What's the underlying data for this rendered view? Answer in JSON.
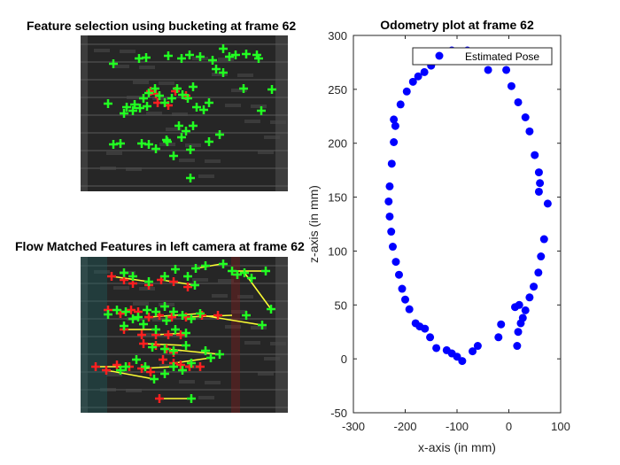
{
  "panels": {
    "top_left_title": "Feature selection using bucketing at frame 62",
    "bottom_left_title": "Flow Matched Features in left camera at frame 62"
  },
  "chart_data": {
    "type": "scatter",
    "title": "Odometry plot at frame 62",
    "xlabel": "x-axis (in mm)",
    "ylabel": "z-axis (in mm)",
    "xlim": [
      -300,
      100
    ],
    "ylim": [
      -50,
      300
    ],
    "xticks": [
      "-300",
      "-200",
      "-100",
      "0",
      "100"
    ],
    "yticks": [
      "-50",
      "0",
      "50",
      "100",
      "150",
      "200",
      "250",
      "300"
    ],
    "grid": false,
    "legend": {
      "position": "top-right",
      "entries": [
        "Estimated Pose"
      ]
    },
    "series": [
      {
        "name": "Estimated Pose",
        "color": "#0000ff",
        "points": [
          [
            -90,
            -2
          ],
          [
            -100,
            2
          ],
          [
            -110,
            5
          ],
          [
            -120,
            8
          ],
          [
            -140,
            10
          ],
          [
            -152,
            20
          ],
          [
            -162,
            28
          ],
          [
            -172,
            30
          ],
          [
            -180,
            33
          ],
          [
            -192,
            46
          ],
          [
            -200,
            55
          ],
          [
            -206,
            65
          ],
          [
            -212,
            78
          ],
          [
            -218,
            90
          ],
          [
            -224,
            104
          ],
          [
            -227,
            118
          ],
          [
            -230,
            132
          ],
          [
            -232,
            146
          ],
          [
            -230,
            160
          ],
          [
            -226,
            181
          ],
          [
            -222,
            201
          ],
          [
            -219,
            216
          ],
          [
            -222,
            222
          ],
          [
            -209,
            236
          ],
          [
            -197,
            248
          ],
          [
            -185,
            257
          ],
          [
            -175,
            262
          ],
          [
            -163,
            266
          ],
          [
            -150,
            272
          ],
          [
            -110,
            286
          ],
          [
            -80,
            286
          ],
          [
            -40,
            268
          ],
          [
            -5,
            268
          ],
          [
            5,
            253
          ],
          [
            18,
            238
          ],
          [
            32,
            224
          ],
          [
            40,
            211
          ],
          [
            50,
            189
          ],
          [
            58,
            173
          ],
          [
            60,
            163
          ],
          [
            58,
            155
          ],
          [
            75,
            144
          ],
          [
            68,
            111
          ],
          [
            62,
            95
          ],
          [
            57,
            80
          ],
          [
            48,
            67
          ],
          [
            40,
            57
          ],
          [
            32,
            45
          ],
          [
            27,
            38
          ],
          [
            23,
            33
          ],
          [
            18,
            25
          ],
          [
            16,
            12
          ],
          [
            12,
            48
          ],
          [
            20,
            50
          ],
          [
            -15,
            32
          ],
          [
            -20,
            20
          ],
          [
            -60,
            12
          ],
          [
            -70,
            7
          ]
        ]
      }
    ]
  },
  "camera_top": {
    "features_green": [
      [
        128,
        72
      ],
      [
        157,
        66
      ],
      [
        165,
        65
      ],
      [
        190,
        63
      ],
      [
        205,
        66
      ],
      [
        214,
        62
      ],
      [
        226,
        64
      ],
      [
        240,
        68
      ],
      [
        252,
        55
      ],
      [
        259,
        64
      ],
      [
        266,
        62
      ],
      [
        278,
        61
      ],
      [
        290,
        62
      ],
      [
        292,
        66
      ],
      [
        244,
        78
      ],
      [
        252,
        82
      ],
      [
        307,
        101
      ],
      [
        275,
        100
      ],
      [
        122,
        117
      ],
      [
        143,
        121
      ],
      [
        152,
        118
      ],
      [
        158,
        122
      ],
      [
        162,
        111
      ],
      [
        168,
        105
      ],
      [
        175,
        100
      ],
      [
        180,
        108
      ],
      [
        186,
        116
      ],
      [
        194,
        111
      ],
      [
        200,
        100
      ],
      [
        206,
        107
      ],
      [
        212,
        111
      ],
      [
        218,
        98
      ],
      [
        222,
        121
      ],
      [
        230,
        124
      ],
      [
        236,
        116
      ],
      [
        140,
        128
      ],
      [
        150,
        125
      ],
      [
        166,
        120
      ],
      [
        295,
        125
      ],
      [
        128,
        163
      ],
      [
        136,
        162
      ],
      [
        160,
        162
      ],
      [
        168,
        163
      ],
      [
        176,
        168
      ],
      [
        189,
        160
      ],
      [
        196,
        176
      ],
      [
        205,
        155
      ],
      [
        215,
        169
      ],
      [
        218,
        142
      ],
      [
        236,
        160
      ],
      [
        248,
        152
      ],
      [
        202,
        142
      ],
      [
        210,
        148
      ],
      [
        215,
        201
      ],
      [
        188,
        158
      ]
    ],
    "features_red": [
      [
        170,
        103
      ],
      [
        176,
        106
      ],
      [
        198,
        103
      ],
      [
        210,
        108
      ],
      [
        178,
        116
      ],
      [
        190,
        119
      ]
    ]
  },
  "camera_bottom": {
    "features_green": [
      [
        221,
        303
      ],
      [
        232,
        300
      ],
      [
        252,
        298
      ],
      [
        262,
        306
      ],
      [
        268,
        310
      ],
      [
        276,
        308
      ],
      [
        284,
        314
      ],
      [
        300,
        306
      ],
      [
        306,
        349
      ],
      [
        296,
        367
      ],
      [
        278,
        356
      ],
      [
        140,
        308
      ],
      [
        150,
        312
      ],
      [
        168,
        318
      ],
      [
        186,
        312
      ],
      [
        198,
        304
      ],
      [
        212,
        312
      ],
      [
        220,
        322
      ],
      [
        122,
        355
      ],
      [
        132,
        350
      ],
      [
        142,
        352
      ],
      [
        156,
        358
      ],
      [
        166,
        350
      ],
      [
        176,
        352
      ],
      [
        186,
        346
      ],
      [
        196,
        352
      ],
      [
        206,
        356
      ],
      [
        216,
        360
      ],
      [
        226,
        354
      ],
      [
        140,
        368
      ],
      [
        150,
        360
      ],
      [
        162,
        366
      ],
      [
        176,
        372
      ],
      [
        188,
        362
      ],
      [
        198,
        372
      ],
      [
        210,
        376
      ],
      [
        172,
        392
      ],
      [
        186,
        394
      ],
      [
        196,
        396
      ],
      [
        210,
        390
      ],
      [
        248,
        400
      ],
      [
        216,
        410
      ],
      [
        206,
        418
      ],
      [
        196,
        414
      ],
      [
        186,
        422
      ],
      [
        174,
        428
      ],
      [
        164,
        414
      ],
      [
        154,
        406
      ],
      [
        142,
        414
      ],
      [
        136,
        418
      ],
      [
        216,
        450
      ],
      [
        232,
        396
      ],
      [
        238,
        404
      ]
    ],
    "features_red": [
      [
        126,
        312
      ],
      [
        140,
        316
      ],
      [
        150,
        320
      ],
      [
        168,
        322
      ],
      [
        182,
        316
      ],
      [
        196,
        318
      ],
      [
        212,
        324
      ],
      [
        122,
        350
      ],
      [
        136,
        354
      ],
      [
        148,
        350
      ],
      [
        156,
        352
      ],
      [
        168,
        358
      ],
      [
        180,
        356
      ],
      [
        194,
        358
      ],
      [
        210,
        358
      ],
      [
        228,
        356
      ],
      [
        246,
        356
      ],
      [
        140,
        372
      ],
      [
        160,
        378
      ],
      [
        176,
        378
      ],
      [
        190,
        378
      ],
      [
        204,
        378
      ],
      [
        162,
        388
      ],
      [
        176,
        390
      ],
      [
        188,
        394
      ],
      [
        196,
        398
      ],
      [
        108,
        414
      ],
      [
        120,
        418
      ],
      [
        132,
        412
      ],
      [
        146,
        414
      ],
      [
        160,
        416
      ],
      [
        170,
        420
      ],
      [
        184,
        406
      ],
      [
        196,
        410
      ],
      [
        204,
        412
      ],
      [
        214,
        414
      ],
      [
        226,
        414
      ],
      [
        180,
        450
      ]
    ],
    "flow_lines": [
      [
        [
          221,
          303
        ],
        [
          250,
          298
        ]
      ],
      [
        [
          262,
          306
        ],
        [
          300,
          306
        ]
      ],
      [
        [
          276,
          308
        ],
        [
          306,
          349
        ]
      ],
      [
        [
          126,
          312
        ],
        [
          168,
          318
        ]
      ],
      [
        [
          182,
          316
        ],
        [
          220,
          322
        ]
      ],
      [
        [
          168,
          358
        ],
        [
          226,
          354
        ]
      ],
      [
        [
          210,
          358
        ],
        [
          262,
          356
        ]
      ],
      [
        [
          228,
          356
        ],
        [
          296,
          367
        ]
      ],
      [
        [
          140,
          372
        ],
        [
          176,
          372
        ]
      ],
      [
        [
          176,
          378
        ],
        [
          210,
          376
        ]
      ],
      [
        [
          162,
          388
        ],
        [
          210,
          390
        ]
      ],
      [
        [
          188,
          394
        ],
        [
          248,
          400
        ]
      ],
      [
        [
          108,
          414
        ],
        [
          142,
          414
        ]
      ],
      [
        [
          120,
          418
        ],
        [
          174,
          428
        ]
      ],
      [
        [
          160,
          416
        ],
        [
          196,
          414
        ]
      ],
      [
        [
          196,
          410
        ],
        [
          238,
          404
        ]
      ],
      [
        [
          180,
          450
        ],
        [
          216,
          450
        ]
      ]
    ]
  }
}
